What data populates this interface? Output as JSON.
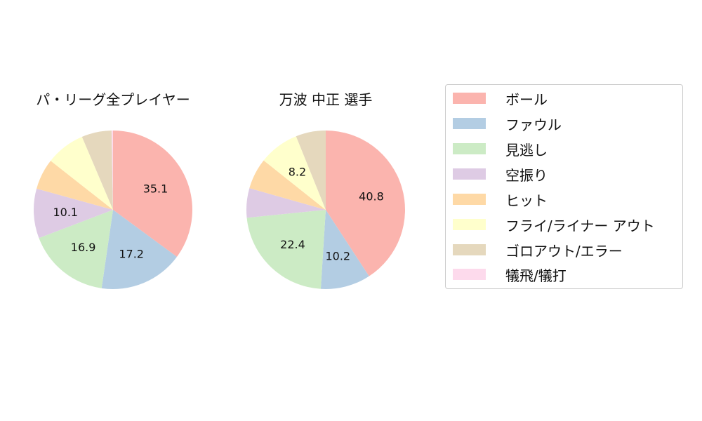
{
  "chart_data": [
    {
      "type": "pie",
      "title": "パ・リーグ全プレイヤー",
      "categories": [
        "ボール",
        "ファウル",
        "見逃し",
        "空振り",
        "ヒット",
        "フライ/ライナー アウト",
        "ゴロアウト/エラー",
        "犠飛/犠打"
      ],
      "values": [
        35.1,
        17.2,
        16.9,
        10.1,
        6.3,
        8.0,
        6.1,
        0.3
      ],
      "shown_labels": [
        "35.1",
        "17.2",
        "16.9",
        "10.1",
        "",
        "",
        "",
        ""
      ],
      "start_angle": 90,
      "direction": "clockwise"
    },
    {
      "type": "pie",
      "title": "万波 中正  選手",
      "categories": [
        "ボール",
        "ファウル",
        "見逃し",
        "空振り",
        "ヒット",
        "フライ/ライナー アウト",
        "ゴロアウト/エラー",
        "犠飛/犠打"
      ],
      "values": [
        40.8,
        10.2,
        22.4,
        6.0,
        6.3,
        8.2,
        6.1,
        0.0
      ],
      "shown_labels": [
        "40.8",
        "10.2",
        "22.4",
        "",
        "",
        "8.2",
        "",
        ""
      ],
      "start_angle": 90,
      "direction": "clockwise"
    }
  ],
  "legend": {
    "position": "right",
    "items": [
      {
        "label": "ボール",
        "color": "#fbb4ae"
      },
      {
        "label": "ファウル",
        "color": "#b3cde3"
      },
      {
        "label": "見逃し",
        "color": "#ccebc5"
      },
      {
        "label": "空振り",
        "color": "#decbe4"
      },
      {
        "label": "ヒット",
        "color": "#fed9a6"
      },
      {
        "label": "フライ/ライナー アウト",
        "color": "#ffffcc"
      },
      {
        "label": "ゴロアウト/エラー",
        "color": "#e5d8bd"
      },
      {
        "label": "犠飛/犠打",
        "color": "#fddaec"
      }
    ]
  }
}
